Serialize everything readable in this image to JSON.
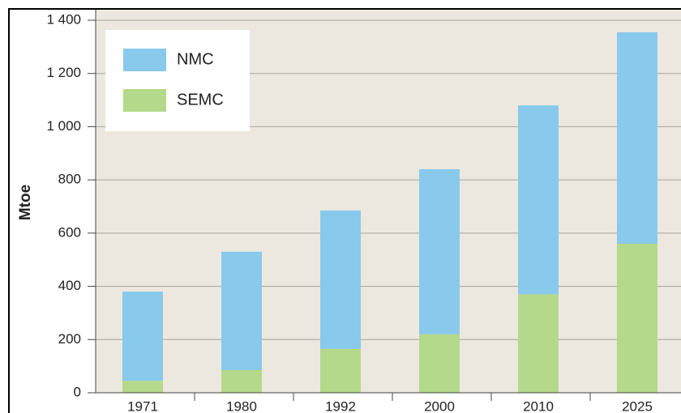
{
  "chart_data": {
    "type": "stacked_bar",
    "y_label": "Mtoe",
    "categories": [
      "1971",
      "1980",
      "1992",
      "2000",
      "2010",
      "2025"
    ],
    "series": [
      {
        "name": "SEMC",
        "color": "#b5d98a",
        "values": [
          45,
          85,
          165,
          220,
          370,
          560
        ]
      },
      {
        "name": "NMC",
        "color": "#88c9ec",
        "values": [
          335,
          445,
          520,
          620,
          710,
          795
        ]
      }
    ],
    "ylim": [
      0,
      1400
    ],
    "yticks": [
      0,
      200,
      400,
      600,
      800,
      {
        "value": 1000,
        "label": "1 000"
      },
      {
        "value": 1200,
        "label": "1 200"
      },
      {
        "value": 1400,
        "label": "1 400"
      }
    ],
    "grid": true
  }
}
